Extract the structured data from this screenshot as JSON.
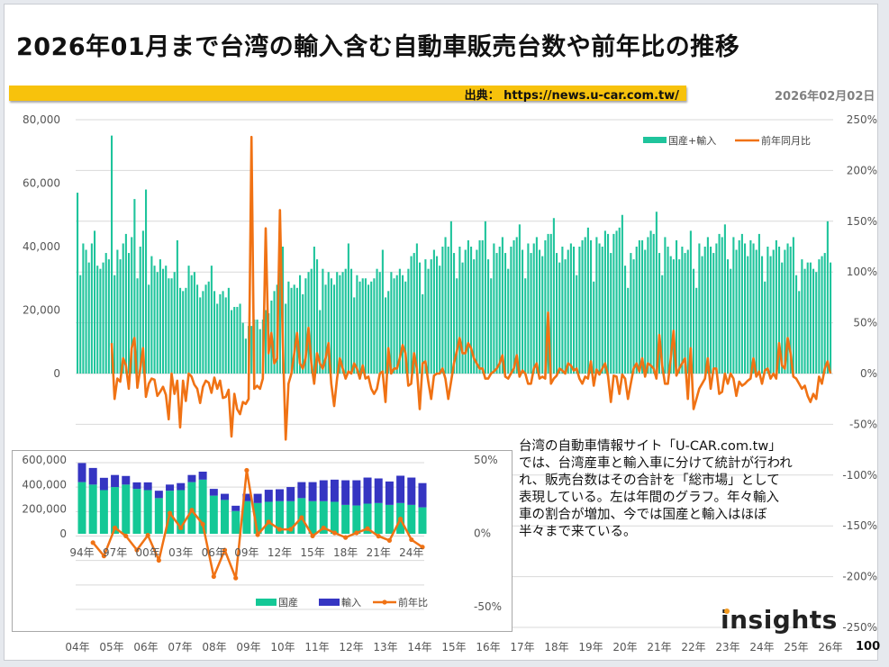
{
  "header": {
    "title": "2026年01月まで台湾の輸入含む自動車販売台数や前年比の推移",
    "source": "出典： https://news.u-car.com.tw/",
    "date": "2026年02月02日"
  },
  "note_lines": [
    "台湾の自動車情報サイト「U-CAR.com.tw」",
    "では、台湾産車と輸入車に分けて統計が行われ",
    "れ、販売台数はその合計を「総市場」として",
    "表現している。左は年間のグラフ。年々輸入",
    "車の割合が増加、今では国産と輸入はほぼ",
    "半々まで来ている。"
  ],
  "logo": "insights",
  "page_number": "100",
  "colors": {
    "total": "#1fc49c",
    "domestic": "#14c896",
    "imports": "#3535c2",
    "yoy": "#f07214"
  },
  "chart_data": [
    {
      "type": "bar+line",
      "legend_position": "top-right",
      "grid": true,
      "series": [
        {
          "name": "国産+輸入",
          "axis": "left",
          "values": [
            57000,
            31000,
            41000,
            39000,
            35000,
            41000,
            45000,
            34000,
            33000,
            35000,
            38000,
            36000,
            75000,
            31000,
            39000,
            36000,
            41000,
            44000,
            38000,
            43000,
            55000,
            30000,
            40000,
            45000,
            58000,
            28000,
            37000,
            34000,
            32000,
            36000,
            33000,
            34000,
            30000,
            30000,
            32000,
            42000,
            27000,
            26000,
            27000,
            34000,
            31000,
            32000,
            28000,
            24000,
            26000,
            28000,
            29000,
            34000,
            26000,
            22000,
            25000,
            26000,
            24000,
            27000,
            20000,
            21000,
            21000,
            22000,
            16000,
            11000,
            15000,
            15000,
            17000,
            17000,
            14000,
            17000,
            20000,
            19000,
            23000,
            26000,
            28000,
            36000,
            40000,
            22000,
            29000,
            27000,
            28000,
            27000,
            31000,
            25000,
            30000,
            32000,
            33000,
            40000,
            36000,
            20000,
            33000,
            28000,
            32000,
            30000,
            28000,
            32000,
            31000,
            32000,
            33000,
            41000,
            33000,
            24000,
            31000,
            29000,
            30000,
            30000,
            28000,
            29000,
            30000,
            33000,
            32000,
            39000,
            24000,
            26000,
            32000,
            30000,
            31000,
            33000,
            31000,
            29000,
            33000,
            37000,
            38000,
            41000,
            35000,
            25000,
            36000,
            33000,
            36000,
            39000,
            37000,
            34000,
            40000,
            43000,
            40000,
            48000,
            38000,
            30000,
            40000,
            35000,
            39000,
            42000,
            40000,
            36000,
            39000,
            42000,
            42000,
            48000,
            36000,
            30000,
            41000,
            38000,
            40000,
            43000,
            38000,
            33000,
            40000,
            42000,
            43000,
            47000,
            39000,
            30000,
            41000,
            38000,
            41000,
            43000,
            39000,
            37000,
            42000,
            44000,
            44000,
            49000,
            38000,
            35000,
            40000,
            36000,
            39000,
            41000,
            40000,
            31000,
            40000,
            42000,
            43000,
            46000,
            42000,
            29000,
            43000,
            41000,
            40000,
            45000,
            44000,
            38000,
            44000,
            45000,
            46000,
            50000,
            34000,
            27000,
            38000,
            36000,
            40000,
            42000,
            42000,
            39000,
            43000,
            45000,
            44000,
            51000,
            38000,
            31000,
            43000,
            40000,
            37000,
            36000,
            42000,
            36000,
            40000,
            38000,
            39000,
            45000,
            33000,
            27000,
            41000,
            37000,
            40000,
            43000,
            40000,
            38000,
            41000,
            44000,
            43000,
            47000,
            36000,
            33000,
            43000,
            39000,
            42000,
            44000,
            41000,
            37000,
            42000,
            41000,
            39000,
            44000,
            37000,
            29000,
            40000,
            37000,
            39000,
            42000,
            40000,
            35000,
            39000,
            41000,
            40000,
            43000,
            31000,
            26000,
            36000,
            33000,
            35000,
            35000,
            33000,
            32000,
            36000,
            37000,
            38000,
            48000,
            35000
          ]
        },
        {
          "name": "前年同月比",
          "axis": "right",
          "unit": "%",
          "values": [
            null,
            null,
            null,
            null,
            null,
            null,
            null,
            null,
            null,
            null,
            null,
            null,
            30,
            -25,
            -5,
            -8,
            15,
            8,
            -15,
            25,
            35,
            -14,
            5,
            25,
            -23,
            -10,
            -5,
            -6,
            -22,
            -18,
            -13,
            -21,
            -45,
            0,
            -20,
            -7,
            -53,
            -7,
            -27,
            0,
            -3,
            -11,
            -15,
            -29,
            -13,
            -7,
            -9,
            -19,
            -4,
            -15,
            -7,
            -24,
            -23,
            -16,
            -62,
            -20,
            -35,
            -40,
            -28,
            -30,
            -25,
            233,
            -15,
            -12,
            -15,
            -5,
            143,
            20,
            40,
            10,
            15,
            161,
            30,
            -65,
            -10,
            0,
            20,
            40,
            10,
            5,
            15,
            45,
            10,
            -10,
            20,
            10,
            5,
            15,
            30,
            -10,
            -32,
            -5,
            15,
            5,
            -5,
            2,
            0,
            10,
            5,
            -5,
            8,
            -5,
            -3,
            -15,
            -20,
            -15,
            0,
            2,
            -28,
            25,
            0,
            5,
            5,
            15,
            28,
            20,
            -12,
            -10,
            20,
            5,
            -35,
            10,
            12,
            -8,
            -25,
            -2,
            0,
            0,
            5,
            -5,
            -25,
            -8,
            10,
            22,
            35,
            20,
            20,
            30,
            25,
            15,
            10,
            5,
            5,
            -5,
            -5,
            0,
            2,
            5,
            10,
            18,
            -3,
            -5,
            0,
            5,
            18,
            -3,
            3,
            0,
            -10,
            -10,
            5,
            10,
            -5,
            -3,
            -5,
            60,
            -10,
            -5,
            -2,
            5,
            3,
            0,
            10,
            8,
            3,
            5,
            -5,
            -10,
            -3,
            -5,
            12,
            -12,
            4,
            -1,
            5,
            10,
            -2,
            -28,
            -2,
            -3,
            -20,
            -1,
            -5,
            -25,
            -10,
            5,
            10,
            2,
            15,
            -3,
            10,
            8,
            5,
            -5,
            38,
            8,
            -10,
            -10,
            15,
            42,
            -2,
            5,
            10,
            15,
            -25,
            25,
            -35,
            -25,
            -15,
            -10,
            -5,
            15,
            -15,
            5,
            5,
            -20,
            -18,
            0,
            -10,
            0,
            -5,
            -22,
            -8,
            -12,
            -10,
            -7,
            -5,
            15,
            -3,
            2,
            -10,
            3,
            5,
            -5,
            0,
            -5,
            30,
            8,
            5,
            35,
            20,
            -3,
            -5,
            -10,
            -15,
            -12,
            -22,
            -28,
            -20,
            -25,
            -3,
            -10,
            5,
            12,
            0
          ]
        }
      ],
      "x_tick_labels": [
        "04年",
        "05年",
        "06年",
        "07年",
        "08年",
        "09年",
        "10年",
        "11年",
        "12年",
        "13年",
        "14年",
        "15年",
        "16年",
        "17年",
        "18年",
        "19年",
        "20年",
        "21年",
        "22年",
        "23年",
        "24年",
        "25年",
        "26年"
      ],
      "y_left_ticks": [
        "80,000",
        "60,000",
        "40,000",
        "20,000",
        "0"
      ],
      "y_left_range": [
        0,
        80000
      ],
      "y_right_ticks": [
        "250%",
        "200%",
        "150%",
        "100%",
        "50%",
        "0%",
        "-50%",
        "-100%",
        "-150%",
        "-200%",
        "-250%"
      ],
      "y_right_range": [
        -250,
        250
      ]
    },
    {
      "type": "stacked-bar+line",
      "legend_position": "bottom-right",
      "grid": true,
      "categories": [
        "94",
        "95",
        "96",
        "97",
        "98",
        "99",
        "00",
        "01",
        "02",
        "03",
        "04",
        "05",
        "06",
        "07",
        "08",
        "09",
        "10",
        "11",
        "12",
        "13",
        "14",
        "15",
        "16",
        "17",
        "18",
        "19",
        "20",
        "21",
        "22",
        "23",
        "24",
        "25"
      ],
      "x_tick_labels": [
        "94年",
        "97年",
        "00年",
        "03年",
        "06年",
        "09年",
        "12年",
        "15年",
        "18年",
        "21年",
        "24年"
      ],
      "series": [
        {
          "name": "国産",
          "values": [
            420000,
            400000,
            355000,
            380000,
            400000,
            365000,
            355000,
            290000,
            350000,
            355000,
            420000,
            440000,
            310000,
            275000,
            185000,
            265000,
            250000,
            260000,
            265000,
            265000,
            290000,
            265000,
            265000,
            260000,
            235000,
            230000,
            245000,
            250000,
            235000,
            250000,
            235000,
            215000
          ]
        },
        {
          "name": "輸入",
          "values": [
            155000,
            135000,
            100000,
            98000,
            70000,
            53000,
            63000,
            60000,
            50000,
            57000,
            58000,
            65000,
            55000,
            50000,
            43000,
            60000,
            75000,
            98000,
            97000,
            115000,
            130000,
            155000,
            170000,
            180000,
            200000,
            205000,
            212000,
            200000,
            190000,
            222000,
            222000,
            197000
          ]
        },
        {
          "name": "前年比",
          "unit": "%",
          "values": [
            null,
            -6,
            -15,
            4,
            -1.5,
            -11,
            -1,
            -18,
            14,
            4,
            16,
            6.5,
            -29,
            -11,
            -30,
            43,
            -0.6,
            8,
            3,
            3,
            11,
            -1.5,
            4,
            0.6,
            -2.5,
            0.6,
            3.5,
            -1.6,
            -4.5,
            10,
            -4,
            -9
          ]
        }
      ],
      "y_left_ticks": [
        "600,000",
        "400,000",
        "200,000",
        "0"
      ],
      "y_left_range": [
        0,
        600000
      ],
      "y_right_ticks": [
        "50%",
        "0%",
        "-50%"
      ],
      "y_right_range": [
        -50,
        50
      ]
    }
  ]
}
